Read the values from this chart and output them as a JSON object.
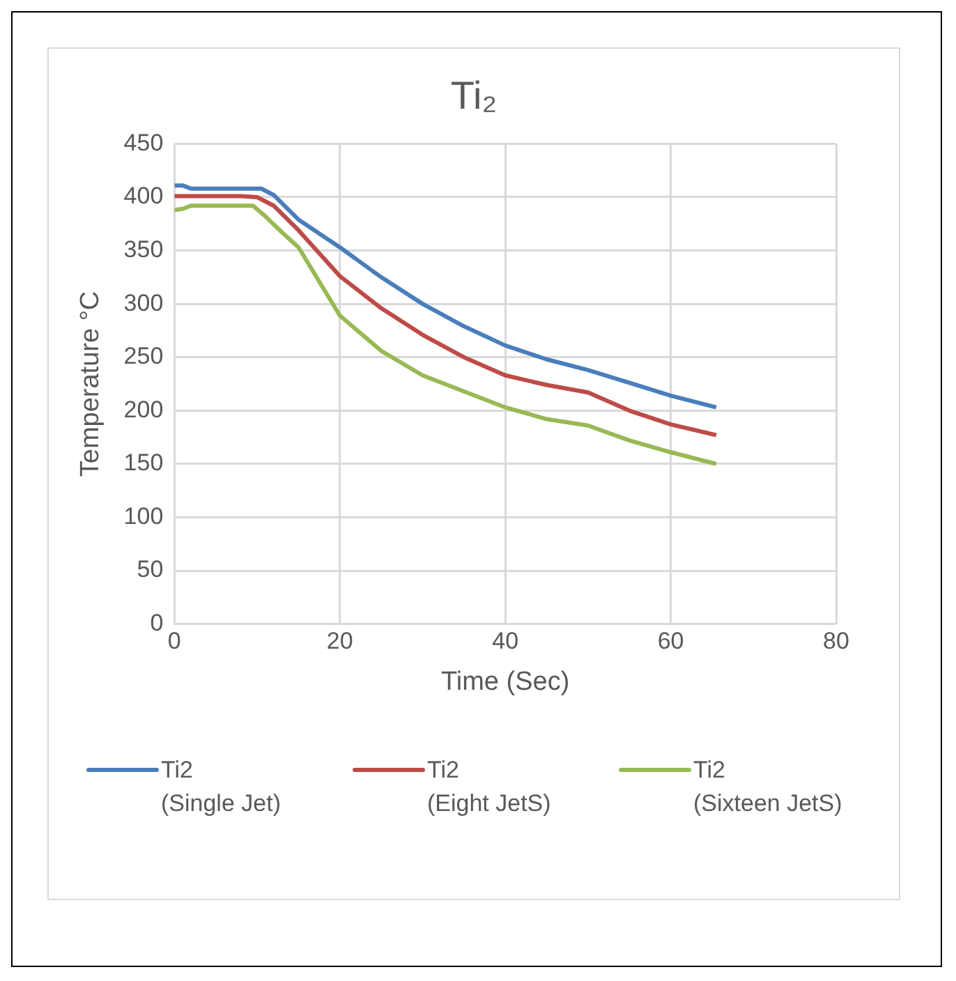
{
  "chart_data": {
    "type": "line",
    "title": "Ti₂",
    "xlabel": "Time (Sec)",
    "ylabel": "Temperature °C",
    "xlim": [
      0,
      80
    ],
    "xticks": [
      0,
      20,
      40,
      60,
      80
    ],
    "ylim": [
      0,
      450
    ],
    "yticks": [
      0,
      50,
      100,
      150,
      200,
      250,
      300,
      350,
      400,
      450
    ],
    "grid": true,
    "legend": "bottom",
    "marker": "none",
    "line_style": "solid",
    "series": [
      {
        "name": "Ti2 (Single Jet)",
        "color": "#4a7ebb",
        "x": [
          0,
          1,
          2,
          5,
          8,
          10.5,
          12,
          15,
          20,
          25,
          30,
          35,
          40,
          45,
          50,
          55,
          60,
          65.5
        ],
        "values": [
          411,
          411,
          408,
          408,
          408,
          408,
          402,
          379,
          353,
          325,
          300,
          279,
          261,
          248,
          238,
          226,
          214,
          203
        ]
      },
      {
        "name": "Ti2 (Eight JetS)",
        "color": "#be4b48",
        "x": [
          0,
          2,
          5,
          8,
          10,
          12,
          15,
          20,
          25,
          30,
          35,
          40,
          45,
          50,
          55,
          60,
          65.5
        ],
        "values": [
          401,
          401,
          401,
          401,
          400,
          392,
          369,
          326,
          296,
          271,
          250,
          233,
          224,
          217,
          200,
          187,
          177
        ]
      },
      {
        "name": "Ti2 (Sixteen JetS)",
        "color": "#98b954",
        "x": [
          0,
          1,
          2,
          5,
          8,
          9.5,
          11,
          13,
          15,
          20,
          25,
          30,
          35,
          40,
          45,
          50,
          55,
          60,
          65.5
        ],
        "values": [
          388,
          389,
          392,
          392,
          392,
          392,
          382,
          367,
          353,
          289,
          256,
          233,
          218,
          203,
          192,
          186,
          172,
          161,
          150
        ]
      }
    ]
  }
}
